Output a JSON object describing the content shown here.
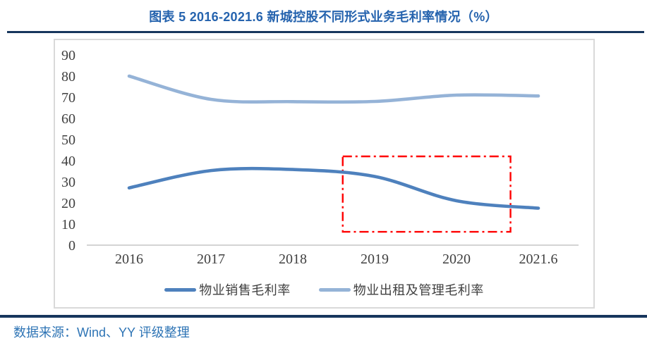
{
  "title": "图表 5 2016-2021.6 新城控股不同形式业务毛利率情况（%）",
  "footer": {
    "source_label": "数据来源：Wind、YY 评级整理"
  },
  "colors": {
    "title_blue": "#2563AE",
    "rule_navy": "#17365D",
    "footer_blue": "#2E74B5",
    "series_sales": "#4E81BD",
    "series_rental": "#95B3D7",
    "tick_text": "#404040",
    "axis_line": "#C6C6C6",
    "card_border": "#D9D9D9",
    "highlight_red": "#FF0000"
  },
  "chart_data": {
    "type": "line",
    "title": "图表 5 2016-2021.6 新城控股不同形式业务毛利率情况（%）",
    "categories": [
      "2016",
      "2017",
      "2018",
      "2019",
      "2020",
      "2021.6"
    ],
    "series": [
      {
        "name": "物业销售毛利率",
        "color": "#4E81BD",
        "values": [
          27.1,
          35.3,
          35.8,
          32.5,
          21.0,
          17.5
        ]
      },
      {
        "name": "物业出租及管理毛利率",
        "color": "#95B3D7",
        "values": [
          80.0,
          69.0,
          67.9,
          68.0,
          71.0,
          70.6
        ]
      }
    ],
    "xlabel": "",
    "ylabel": "",
    "ylim": [
      0,
      90
    ],
    "y_ticks": [
      0,
      10,
      20,
      30,
      40,
      50,
      60,
      70,
      80,
      90
    ],
    "grid": false,
    "line_style": "smooth",
    "legend_position": "bottom",
    "annotation": {
      "shape": "dash-dot-box",
      "color": "#FF0000",
      "x_from_index": 2.61,
      "x_to_index": 4.66,
      "y_from": 6.3,
      "y_to": 42.0,
      "note": "red dash-dot rectangle highlighting 2019-2021 margin decline of 物业销售毛利率"
    }
  }
}
